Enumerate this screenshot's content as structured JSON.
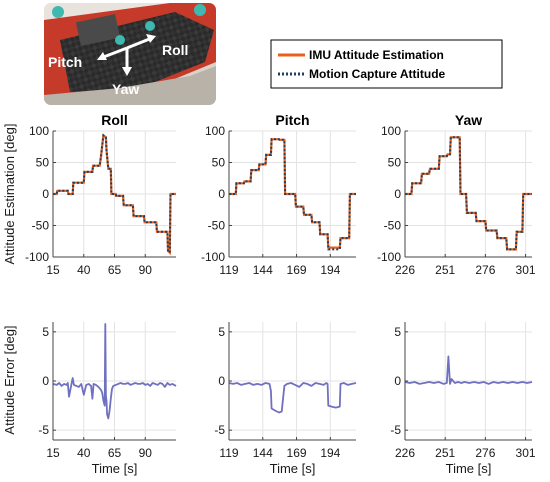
{
  "photo": {
    "labels": {
      "pitch": "Pitch",
      "roll": "Roll",
      "yaw": "Yaw"
    }
  },
  "legend": {
    "entries": [
      {
        "label": "IMU Attitude Estimation",
        "color": "#e8601c",
        "style": "solid"
      },
      {
        "label": "Motion Capture Attitude",
        "color": "#1f3f5f",
        "style": "dotted"
      }
    ]
  },
  "colors": {
    "error": "#7070c0",
    "imu": "#e8601c",
    "mocap": "#1f3f5f"
  },
  "chart_data": [
    {
      "type": "line",
      "title": "Roll",
      "ylabel": "Attitude Estimation [deg]",
      "xlabel": "",
      "xlim": [
        15,
        115
      ],
      "ylim": [
        -100,
        100
      ],
      "xticks": [
        "15",
        "40",
        "65",
        "90"
      ],
      "yticks": [
        "100",
        "50",
        "0",
        "-50",
        "-100"
      ],
      "series": [
        {
          "name": "IMU Attitude Estimation",
          "x": [
            15,
            18,
            18.5,
            27,
            27.5,
            31,
            31.5,
            40,
            40.5,
            47,
            47.5,
            53,
            54,
            56,
            58,
            58.5,
            60,
            62,
            62.5,
            66,
            66.5,
            72,
            72.5,
            80,
            80.5,
            89,
            89.5,
            99,
            99.5,
            108,
            108.5,
            110,
            110.5,
            115
          ],
          "y": [
            0,
            0,
            5,
            5,
            0,
            0,
            18,
            18,
            35,
            35,
            45,
            45,
            60,
            93,
            90,
            70,
            40,
            40,
            0,
            0,
            -3,
            -3,
            -18,
            -18,
            -35,
            -35,
            -45,
            -45,
            -60,
            -60,
            -90,
            -93,
            0,
            0
          ]
        },
        {
          "name": "Motion Capture Attitude",
          "x": [
            15,
            18,
            18.5,
            27,
            27.5,
            31,
            31.5,
            40,
            40.5,
            47,
            47.5,
            53,
            54,
            56,
            58,
            58.5,
            60,
            62,
            62.5,
            66,
            66.5,
            72,
            72.5,
            80,
            80.5,
            89,
            89.5,
            99,
            99.5,
            108,
            108.5,
            110,
            110.5,
            115
          ],
          "y": [
            0,
            0,
            5,
            5,
            0,
            0,
            18,
            18,
            35,
            35,
            45,
            45,
            60,
            93,
            90,
            70,
            40,
            40,
            0,
            0,
            -3,
            -3,
            -18,
            -18,
            -35,
            -35,
            -45,
            -45,
            -60,
            -60,
            -90,
            -93,
            0,
            0
          ]
        }
      ]
    },
    {
      "type": "line",
      "title": "Pitch",
      "ylabel": "",
      "xlabel": "",
      "xlim": [
        119,
        213
      ],
      "ylim": [
        -100,
        100
      ],
      "xticks": [
        "119",
        "144",
        "169",
        "194"
      ],
      "yticks": [
        "100",
        "50",
        "0",
        "-50",
        "-100"
      ],
      "series": [
        {
          "name": "IMU Attitude Estimation",
          "x": [
            119,
            124,
            124.5,
            130,
            130.5,
            135,
            135.5,
            141,
            141.5,
            146,
            146.5,
            150,
            150.5,
            156,
            156.5,
            160,
            160.5,
            168,
            168.5,
            174,
            174.5,
            180,
            180.5,
            186,
            186.5,
            192,
            192.5,
            201,
            201.5,
            208,
            208.5,
            213
          ],
          "y": [
            0,
            0,
            17,
            17,
            20,
            20,
            38,
            38,
            47,
            47,
            62,
            62,
            87,
            87,
            86,
            86,
            0,
            0,
            -20,
            -20,
            -33,
            -33,
            -45,
            -45,
            -64,
            -64,
            -85,
            -85,
            -70,
            -70,
            0,
            0
          ]
        },
        {
          "name": "Motion Capture Attitude",
          "x": [
            119,
            124,
            124.5,
            130,
            130.5,
            135,
            135.5,
            141,
            141.5,
            146,
            146.5,
            150,
            150.5,
            156,
            156.5,
            160,
            160.5,
            168,
            168.5,
            174,
            174.5,
            180,
            180.5,
            186,
            186.5,
            192,
            192.5,
            201,
            201.5,
            208,
            208.5,
            213
          ],
          "y": [
            0,
            0,
            17,
            17,
            20,
            20,
            38,
            38,
            47,
            47,
            62,
            62,
            87,
            87,
            86,
            86,
            0,
            0,
            -20,
            -20,
            -33,
            -33,
            -45,
            -45,
            -64,
            -64,
            -88,
            -88,
            -70,
            -70,
            0,
            0
          ]
        }
      ]
    },
    {
      "type": "line",
      "title": "Yaw",
      "ylabel": "",
      "xlabel": "",
      "xlim": [
        226,
        305
      ],
      "ylim": [
        -100,
        100
      ],
      "xticks": [
        "226",
        "251",
        "276",
        "301"
      ],
      "yticks": [
        "100",
        "50",
        "0",
        "-50",
        "-100"
      ],
      "series": [
        {
          "name": "IMU Attitude Estimation",
          "x": [
            226,
            230,
            230.5,
            236,
            236.5,
            241,
            241.5,
            247,
            247.5,
            252,
            252.5,
            254,
            254.5,
            260,
            260.5,
            264,
            264.5,
            270,
            270.5,
            276,
            276.5,
            283,
            283.5,
            289,
            289.5,
            295,
            295.5,
            299,
            299.5,
            305
          ],
          "y": [
            0,
            0,
            17,
            17,
            32,
            32,
            40,
            40,
            60,
            60,
            63,
            63,
            90,
            90,
            0,
            0,
            -30,
            -30,
            -43,
            -43,
            -58,
            -58,
            -70,
            -70,
            -88,
            -88,
            -60,
            -60,
            0,
            0
          ]
        },
        {
          "name": "Motion Capture Attitude",
          "x": [
            226,
            230,
            230.5,
            236,
            236.5,
            241,
            241.5,
            247,
            247.5,
            252,
            252.5,
            254,
            254.5,
            260,
            260.5,
            264,
            264.5,
            270,
            270.5,
            276,
            276.5,
            283,
            283.5,
            289,
            289.5,
            295,
            295.5,
            299,
            299.5,
            305
          ],
          "y": [
            0,
            0,
            17,
            17,
            32,
            32,
            40,
            40,
            60,
            60,
            63,
            63,
            90,
            90,
            0,
            0,
            -30,
            -30,
            -43,
            -43,
            -58,
            -58,
            -70,
            -70,
            -88,
            -88,
            -60,
            -60,
            0,
            0
          ]
        }
      ]
    },
    {
      "type": "line",
      "title": "",
      "ylabel": "Attitude Error [deg]",
      "xlabel": "Time [s]",
      "xlim": [
        15,
        115
      ],
      "ylim": [
        -6,
        6
      ],
      "xticks": [
        "15",
        "40",
        "65",
        "90"
      ],
      "yticks": [
        "5",
        "0",
        "-5"
      ],
      "series": [
        {
          "name": "",
          "x": [
            15,
            18,
            20,
            22,
            24,
            26,
            27,
            28,
            30,
            31,
            32,
            34,
            36,
            38,
            40,
            42,
            44,
            46,
            47,
            48,
            50,
            52,
            54,
            55,
            56,
            57,
            57.5,
            58,
            58.5,
            59,
            60,
            61,
            62,
            63,
            64,
            66,
            68,
            70,
            72,
            74,
            76,
            78,
            80,
            82,
            84,
            86,
            88,
            90,
            92,
            94,
            96,
            98,
            100,
            102,
            104,
            106,
            108,
            110,
            112,
            115
          ],
          "y": [
            -0.3,
            -0.4,
            -0.2,
            -0.5,
            -0.3,
            -0.4,
            -0.2,
            -1.6,
            -0.3,
            0.3,
            -0.4,
            -0.5,
            -0.6,
            -0.3,
            -1.4,
            -0.4,
            -0.3,
            -0.5,
            -1.8,
            -0.3,
            -0.4,
            -0.6,
            -0.9,
            -1.2,
            -2.0,
            -2.5,
            5.8,
            -1.5,
            -2.0,
            -3.4,
            -3.8,
            -3.0,
            -1.8,
            -0.8,
            -0.5,
            -0.4,
            -0.3,
            -0.2,
            -0.3,
            -0.3,
            -0.2,
            -0.4,
            -0.3,
            -0.2,
            -0.3,
            -0.3,
            -0.2,
            -0.4,
            -0.3,
            -0.5,
            -0.2,
            -0.3,
            -0.4,
            -0.2,
            -0.3,
            -0.6,
            -0.2,
            -0.4,
            -0.3,
            -0.5
          ]
        }
      ]
    },
    {
      "type": "line",
      "title": "",
      "ylabel": "",
      "xlabel": "Time [s]",
      "xlim": [
        119,
        213
      ],
      "ylim": [
        -6,
        6
      ],
      "xticks": [
        "119",
        "144",
        "169",
        "194"
      ],
      "yticks": [
        "5",
        "0",
        "-5"
      ],
      "series": [
        {
          "name": "",
          "x": [
            119,
            122,
            125,
            128,
            131,
            134,
            137,
            140,
            143,
            146,
            149,
            150,
            150.5,
            153,
            156,
            158,
            160,
            162,
            165,
            168,
            171,
            174,
            177,
            180,
            183,
            186,
            189,
            191,
            192,
            192.5,
            195,
            198,
            201,
            201.5,
            204,
            207,
            210,
            213
          ],
          "y": [
            -0.2,
            -0.3,
            -0.2,
            -0.4,
            -0.3,
            -0.2,
            -0.4,
            -0.3,
            -0.4,
            -0.2,
            -0.3,
            -1.0,
            -2.8,
            -3.0,
            -3.2,
            -3.1,
            -0.5,
            -0.3,
            -0.2,
            -0.4,
            -0.6,
            -0.2,
            -0.3,
            -0.5,
            -0.2,
            -0.3,
            -0.4,
            -0.2,
            -0.3,
            -2.5,
            -2.6,
            -2.7,
            -2.6,
            -0.3,
            -0.2,
            -0.4,
            -0.3,
            -0.2
          ]
        }
      ]
    },
    {
      "type": "line",
      "title": "",
      "ylabel": "",
      "xlabel": "Time [s]",
      "xlim": [
        226,
        305
      ],
      "ylim": [
        -6,
        6
      ],
      "xticks": [
        "226",
        "251",
        "276",
        "301"
      ],
      "yticks": [
        "5",
        "0",
        "-5"
      ],
      "series": [
        {
          "name": "",
          "x": [
            226,
            229,
            232,
            235,
            238,
            241,
            244,
            247,
            250,
            252,
            253,
            254,
            255,
            257,
            259,
            261,
            263,
            266,
            269,
            272,
            275,
            278,
            281,
            284,
            287,
            290,
            293,
            296,
            299,
            302,
            305
          ],
          "y": [
            -0.1,
            -0.2,
            -0.1,
            -0.3,
            -0.2,
            -0.1,
            -0.2,
            -0.1,
            -0.3,
            -0.2,
            2.5,
            -0.3,
            0.2,
            -0.2,
            -0.1,
            -0.2,
            -0.1,
            -0.2,
            -0.1,
            -0.2,
            -0.1,
            -0.3,
            -0.1,
            -0.2,
            -0.1,
            -0.2,
            -0.1,
            -0.2,
            -0.1,
            -0.2,
            -0.1
          ]
        }
      ]
    }
  ]
}
